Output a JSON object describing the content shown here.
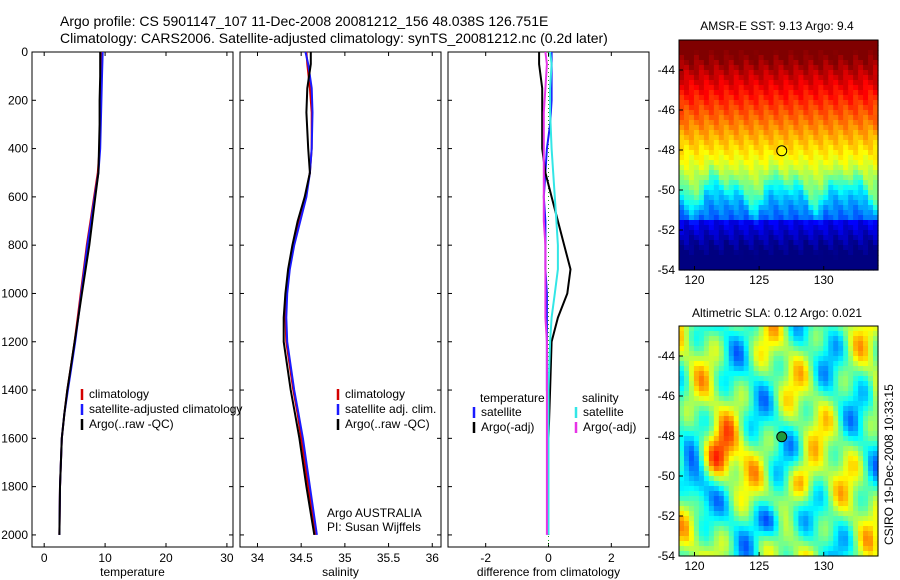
{
  "title": {
    "line1": "Argo profile: CS 5901147_107 11-Dec-2008 20081212_156 48.038S 126.751E",
    "line2": "Climatology: CARS2006. Satellite-adjusted climatology: synTS_20081212.nc (0.2d later)"
  },
  "side_label": "CSIRO 19-Dec-2008 10:33:15",
  "colors": {
    "climatology": "#d40000",
    "satellite": "#1a1aff",
    "argo": "#000000",
    "salinity_satellite": "#33e6e6",
    "salinity_argo": "#e633e6"
  },
  "chart_data": [
    {
      "id": "temperature",
      "type": "line",
      "xlabel": "temperature",
      "ylabel": "",
      "xlim": [
        -2,
        31
      ],
      "ylim": [
        0,
        2050
      ],
      "y_reversed": true,
      "xticks": [
        0,
        10,
        20,
        30
      ],
      "yticks": [
        0,
        200,
        400,
        600,
        800,
        1000,
        1200,
        1400,
        1600,
        1800,
        2000
      ],
      "legend": {
        "position": "lower-right",
        "entries": [
          "climatology",
          "satellite-adjusted climatology",
          "Argo(..raw -QC)"
        ]
      },
      "series": [
        {
          "name": "climatology",
          "color_key": "climatology",
          "x": [
            9.5,
            9.4,
            9.3,
            9.2,
            9.1,
            8.8,
            8.2,
            7.6,
            7.0,
            6.5,
            6.0,
            5.5,
            5.0,
            4.4,
            3.8,
            3.3,
            2.9,
            2.6,
            2.5
          ],
          "y": [
            0,
            100,
            200,
            300,
            400,
            500,
            600,
            700,
            800,
            900,
            1000,
            1100,
            1200,
            1300,
            1400,
            1500,
            1600,
            1800,
            2000
          ]
        },
        {
          "name": "satellite-adjusted climatology",
          "color_key": "satellite",
          "x": [
            9.6,
            9.5,
            9.4,
            9.3,
            9.2,
            8.9,
            8.3,
            7.7,
            7.1,
            6.6,
            6.1,
            5.6,
            5.1,
            4.5,
            3.9,
            3.3,
            2.9,
            2.6,
            2.5
          ],
          "y": [
            0,
            100,
            200,
            300,
            400,
            500,
            600,
            700,
            800,
            900,
            1000,
            1100,
            1200,
            1300,
            1400,
            1500,
            1600,
            1800,
            2000
          ]
        },
        {
          "name": "Argo(..raw -QC)",
          "color_key": "argo",
          "x": [
            9.2,
            9.2,
            9.1,
            9.1,
            9.0,
            8.9,
            8.4,
            7.9,
            7.4,
            6.8,
            6.2,
            5.6,
            5.0,
            4.4,
            3.8,
            3.3,
            2.9,
            2.6,
            2.5
          ],
          "y": [
            0,
            100,
            200,
            300,
            400,
            500,
            600,
            700,
            800,
            900,
            1000,
            1100,
            1200,
            1300,
            1400,
            1500,
            1600,
            1800,
            2000
          ]
        }
      ]
    },
    {
      "id": "salinity",
      "type": "line",
      "xlabel": "salinity",
      "ylabel": "",
      "xlim": [
        33.8,
        36.1
      ],
      "ylim": [
        0,
        2050
      ],
      "y_reversed": true,
      "xticks": [
        34,
        34.5,
        35,
        35.5,
        36
      ],
      "yticks": [
        0,
        200,
        400,
        600,
        800,
        1000,
        1200,
        1400,
        1600,
        1800,
        2000
      ],
      "legend": {
        "position": "lower-right",
        "entries": [
          "climatology",
          "satellite adj. clim.",
          "Argo(..raw -QC)"
        ]
      },
      "annotation": [
        "Argo AUSTRALIA",
        "PI: Susan Wijffels"
      ],
      "series": [
        {
          "name": "climatology",
          "color_key": "climatology",
          "x": [
            34.56,
            34.57,
            34.6,
            34.62,
            34.62,
            34.6,
            34.55,
            34.48,
            34.41,
            34.36,
            34.33,
            34.32,
            34.33,
            34.37,
            34.41,
            34.46,
            34.5,
            34.58,
            34.66
          ],
          "y": [
            0,
            50,
            150,
            250,
            400,
            500,
            600,
            700,
            800,
            900,
            1000,
            1100,
            1200,
            1300,
            1400,
            1500,
            1600,
            1800,
            2000
          ]
        },
        {
          "name": "satellite adj. clim.",
          "color_key": "satellite",
          "x": [
            34.55,
            34.58,
            34.62,
            34.63,
            34.62,
            34.6,
            34.56,
            34.49,
            34.42,
            34.37,
            34.34,
            34.33,
            34.34,
            34.38,
            34.42,
            34.47,
            34.52,
            34.6,
            34.68
          ],
          "y": [
            0,
            50,
            150,
            250,
            400,
            500,
            600,
            700,
            800,
            900,
            1000,
            1100,
            1200,
            1300,
            1400,
            1500,
            1600,
            1800,
            2000
          ]
        },
        {
          "name": "Argo(..raw -QC)",
          "color_key": "argo",
          "x": [
            34.61,
            34.61,
            34.57,
            34.56,
            34.58,
            34.6,
            34.54,
            34.46,
            34.4,
            34.35,
            34.32,
            34.3,
            34.3,
            34.34,
            34.38,
            34.43,
            34.48,
            34.56,
            34.65
          ],
          "y": [
            0,
            50,
            150,
            250,
            400,
            500,
            600,
            700,
            800,
            900,
            1000,
            1100,
            1200,
            1300,
            1400,
            1500,
            1600,
            1800,
            2000
          ]
        }
      ]
    },
    {
      "id": "difference",
      "type": "line",
      "xlabel": "difference from climatology",
      "ylabel": "",
      "xlim": [
        -3.2,
        3.2
      ],
      "ylim": [
        0,
        2050
      ],
      "y_reversed": true,
      "xticks": [
        -2,
        0,
        2
      ],
      "yticks": [
        0,
        200,
        400,
        600,
        800,
        1000,
        1200,
        1400,
        1600,
        1800,
        2000
      ],
      "legend": {
        "position": "lower-center",
        "headers": [
          "temperature",
          "salinity"
        ],
        "entries": [
          {
            "label": "satellite",
            "color_key": "satellite"
          },
          {
            "label": "Argo(-adj)",
            "color_key": "argo"
          },
          {
            "label": "satellite",
            "color_key": "salinity_satellite"
          },
          {
            "label": "Argo(-adj)",
            "color_key": "salinity_argo"
          }
        ]
      },
      "series": [
        {
          "name": "temperature satellite",
          "color_key": "satellite",
          "x": [
            0.1,
            0.1,
            0.1,
            0.05,
            -0.05,
            -0.1,
            -0.15,
            -0.1,
            -0.1,
            -0.1,
            -0.05,
            -0.05,
            -0.05,
            0,
            0,
            0,
            0,
            0
          ],
          "y": [
            0,
            100,
            200,
            300,
            400,
            500,
            600,
            700,
            800,
            900,
            1000,
            1200,
            1400,
            1500,
            1600,
            1800,
            2000,
            2000
          ]
        },
        {
          "name": "temperature Argo(-adj)",
          "color_key": "argo",
          "x": [
            -0.3,
            -0.3,
            -0.2,
            -0.2,
            -0.2,
            -0.1,
            0.1,
            0.3,
            0.5,
            0.7,
            0.6,
            0.3,
            0.1,
            0.05,
            0,
            0,
            0
          ],
          "y": [
            0,
            50,
            150,
            250,
            400,
            500,
            600,
            700,
            800,
            900,
            1000,
            1100,
            1200,
            1400,
            1600,
            1800,
            2000
          ]
        },
        {
          "name": "salinity satellite",
          "color_key": "salinity_satellite",
          "x": [
            0.05,
            0.1,
            0.05,
            0.05,
            0.1,
            0.15,
            0.2,
            0.25,
            0.3,
            0.3,
            0.2,
            0.1,
            0.05,
            0,
            0,
            0,
            0
          ],
          "y": [
            0,
            50,
            150,
            250,
            400,
            500,
            600,
            700,
            800,
            900,
            1000,
            1100,
            1200,
            1400,
            1600,
            1800,
            2000
          ]
        },
        {
          "name": "salinity Argo(-adj)",
          "color_key": "salinity_argo",
          "x": [
            -0.1,
            -0.05,
            -0.1,
            -0.15,
            -0.15,
            -0.15,
            -0.15,
            -0.15,
            -0.1,
            -0.1,
            -0.1,
            -0.1,
            -0.05,
            -0.05,
            -0.05,
            -0.05,
            -0.05
          ],
          "y": [
            0,
            50,
            150,
            250,
            400,
            500,
            600,
            700,
            800,
            900,
            1000,
            1100,
            1200,
            1400,
            1600,
            1800,
            2000
          ]
        }
      ]
    },
    {
      "id": "sst_map",
      "type": "heatmap",
      "title": "AMSR-E SST: 9.13 Argo: 9.4",
      "xlim": [
        118.8,
        134.2
      ],
      "ylim": [
        -54,
        -42.5
      ],
      "xticks": [
        120,
        125,
        130
      ],
      "yticks": [
        -44,
        -46,
        -48,
        -50,
        -52,
        -54
      ],
      "marker": {
        "lon": 126.751,
        "lat": -48.038,
        "style": "open-circle"
      },
      "colormap": "jet",
      "value_range": [
        -1,
        14
      ]
    },
    {
      "id": "sla_map",
      "type": "heatmap",
      "title": "Altimetric SLA: 0.12 Argo: 0.021",
      "xlim": [
        118.8,
        134.2
      ],
      "ylim": [
        -54,
        -42.5
      ],
      "xticks": [
        120,
        125,
        130
      ],
      "yticks": [
        -44,
        -46,
        -48,
        -50,
        -52,
        -54
      ],
      "marker": {
        "lon": 126.751,
        "lat": -48.038,
        "style": "filled-circle"
      },
      "colormap": "jet",
      "value_range": [
        -0.5,
        0.5
      ]
    }
  ]
}
